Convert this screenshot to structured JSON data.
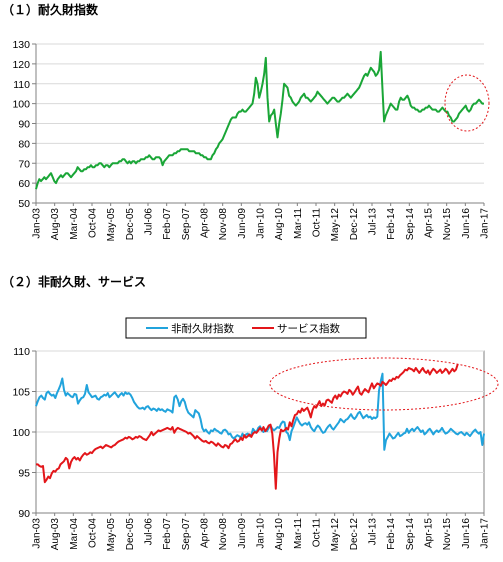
{
  "sections": {
    "durable_title": "（１）耐久財指数",
    "nondurable_title": "（２）非耐久財、サービス"
  },
  "colors": {
    "durable": "#1aa637",
    "nondurable": "#21a3dc",
    "services": "#e3161a",
    "highlight": "#e3161a",
    "axis": "#808080",
    "grid": "#d9d9d9"
  },
  "chart_data": [
    {
      "type": "line",
      "title": "",
      "x_tick_labels": [
        "Jan-03",
        "Aug-03",
        "Mar-04",
        "Oct-04",
        "May-05",
        "Dec-05",
        "Jul-06",
        "Feb-07",
        "Sep-07",
        "Apr-08",
        "Nov-08",
        "Jun-09",
        "Jan-10",
        "Aug-10",
        "Mar-11",
        "Oct-11",
        "May-12",
        "Dec-12",
        "Jul-13",
        "Feb-14",
        "Sep-14",
        "Apr-15",
        "Nov-15",
        "Jun-16",
        "Jan-17"
      ],
      "ylim": [
        50,
        130
      ],
      "y_ticks": [
        50,
        60,
        70,
        80,
        90,
        100,
        110,
        120,
        130
      ],
      "grid": "horizontal",
      "highlight": "dotted ellipse around Jun-16 to Jan-17",
      "series": [
        {
          "color": "durable",
          "values": [
            57,
            60,
            62,
            61,
            62,
            63,
            62,
            63,
            64,
            65,
            63,
            61,
            60,
            62,
            63,
            64,
            63,
            64,
            65,
            65,
            64,
            63,
            64,
            65,
            66,
            68,
            67,
            66,
            66,
            67,
            67,
            68,
            68,
            69,
            68,
            68,
            69,
            69,
            70,
            70,
            69,
            68,
            69,
            69,
            68,
            69,
            70,
            70,
            70,
            70,
            71,
            71,
            72,
            72,
            71,
            70,
            71,
            70,
            71,
            71,
            70,
            71,
            71,
            72,
            72,
            72,
            73,
            73,
            74,
            73,
            72,
            72,
            73,
            73,
            73,
            72,
            69,
            71,
            72,
            73,
            74,
            74,
            74,
            75,
            75,
            76,
            76,
            77,
            77,
            77,
            77,
            77,
            76,
            76,
            76,
            76,
            75,
            75,
            75,
            74,
            74,
            73,
            73,
            72,
            72,
            72,
            74,
            75,
            77,
            78,
            80,
            81,
            82,
            84,
            86,
            88,
            90,
            92,
            93,
            93,
            93,
            95,
            96,
            96,
            97,
            96,
            96,
            97,
            98,
            99,
            100,
            105,
            113,
            110,
            103,
            106,
            110,
            115,
            123,
            103,
            91,
            94,
            95,
            97,
            90,
            83,
            90,
            95,
            102,
            110,
            109,
            108,
            104,
            103,
            101,
            100,
            99,
            100,
            101,
            103,
            104,
            105,
            103,
            103,
            102,
            101,
            102,
            103,
            104,
            106,
            105,
            104,
            103,
            102,
            101,
            100,
            101,
            102,
            103,
            103,
            102,
            101,
            101,
            102,
            103,
            103,
            104,
            105,
            104,
            103,
            104,
            105,
            106,
            107,
            108,
            110,
            112,
            114,
            115,
            114,
            116,
            118,
            117,
            116,
            114,
            115,
            117,
            126,
            108,
            91,
            94,
            96,
            98,
            100,
            99,
            98,
            97,
            97,
            101,
            103,
            102,
            102,
            103,
            104,
            102,
            99,
            98,
            98,
            97,
            97,
            96,
            96,
            97,
            97,
            98,
            98,
            99,
            98,
            97,
            97,
            97,
            96,
            96,
            97,
            98,
            97,
            96,
            96,
            94,
            93,
            91,
            91,
            92,
            93,
            95,
            96,
            97,
            98,
            99,
            97,
            96,
            97,
            99,
            100,
            100,
            101,
            102,
            101,
            100,
            100
          ]
        }
      ]
    },
    {
      "type": "line",
      "title": "",
      "x_tick_labels": [
        "Jan-03",
        "Aug-03",
        "Mar-04",
        "Oct-04",
        "May-05",
        "Dec-05",
        "Jul-06",
        "Feb-07",
        "Sep-07",
        "Apr-08",
        "Nov-08",
        "Jun-09",
        "Jan-10",
        "Aug-10",
        "Mar-11",
        "Oct-11",
        "May-12",
        "Dec-12",
        "Jul-13",
        "Feb-14",
        "Sep-14",
        "Apr-15",
        "Nov-15",
        "Jun-16",
        "Jan-17"
      ],
      "ylim": [
        90,
        110
      ],
      "y_ticks": [
        90,
        95,
        100,
        105,
        110
      ],
      "grid": "horizontal",
      "legend_position": "top-center",
      "highlight": "dotted ellipse from Jan-14 to Jan-17",
      "series": [
        {
          "name": "非耐久財指数",
          "color": "nondurable",
          "values": [
            103.2,
            103.8,
            104.3,
            104.5,
            104.2,
            104.0,
            104.8,
            105.0,
            104.7,
            104.5,
            104.6,
            104.2,
            104.8,
            105.3,
            105.8,
            106.6,
            105.2,
            104.5,
            104.8,
            104.6,
            104.4,
            104.3,
            104.7,
            104.6,
            103.5,
            103.9,
            104.2,
            104.3,
            104.7,
            105.8,
            104.9,
            104.6,
            104.3,
            104.4,
            104.5,
            104.1,
            104.0,
            104.3,
            104.4,
            104.6,
            104.5,
            104.8,
            104.3,
            104.5,
            104.7,
            104.9,
            104.6,
            104.3,
            104.6,
            104.8,
            104.5,
            104.9,
            104.7,
            104.8,
            104.6,
            104.2,
            103.7,
            103.4,
            103.1,
            102.9,
            102.9,
            103.0,
            102.8,
            103.1,
            103.2,
            102.9,
            102.7,
            102.9,
            102.8,
            102.6,
            102.9,
            102.7,
            102.8,
            102.6,
            102.5,
            102.8,
            102.7,
            102.6,
            102.4,
            104.3,
            104.5,
            104.0,
            103.2,
            103.8,
            104.1,
            103.7,
            102.9,
            102.4,
            102.2,
            102.0,
            101.8,
            102.7,
            102.5,
            102.3,
            101.6,
            100.5,
            100.1,
            100.3,
            100.0,
            99.8,
            100.2,
            100.1,
            100.4,
            100.2,
            100.1,
            99.9,
            99.8,
            100.2,
            100.3,
            100.1,
            99.7,
            99.8,
            99.4,
            99.2,
            99.4,
            99.6,
            99.5,
            99.3,
            99.8,
            99.4,
            99.7,
            99.8,
            99.5,
            99.6,
            100.4,
            100.1,
            100.0,
            100.5,
            100.7,
            100.2,
            100.0,
            100.3,
            100.1,
            100.5,
            100.8,
            100.4,
            100.2,
            100.4,
            100.6,
            100.5,
            101.0,
            101.3,
            101.2,
            100.0,
            99.8,
            99.0,
            100.1,
            100.6,
            101.2,
            101.8,
            101.4,
            101.0,
            100.8,
            101.0,
            101.1,
            100.9,
            101.2,
            100.6,
            100.3,
            100.1,
            100.5,
            100.8,
            100.6,
            100.2,
            99.9,
            100.0,
            100.4,
            100.7,
            100.9,
            100.5,
            100.3,
            100.6,
            100.9,
            101.2,
            101.6,
            101.4,
            101.2,
            101.5,
            101.6,
            101.9,
            102.2,
            101.8,
            101.6,
            101.9,
            102.3,
            102.5,
            102.1,
            101.7,
            101.9,
            102.1,
            101.8,
            101.9,
            101.6,
            101.8,
            101.7,
            101.9,
            105.1,
            106.3,
            107.2,
            97.8,
            99.0,
            99.4,
            99.8,
            99.5,
            99.2,
            99.3,
            99.6,
            99.9,
            99.5,
            99.6,
            99.8,
            99.9,
            100.4,
            99.9,
            100.2,
            100.4,
            100.1,
            100.4,
            100.6,
            100.3,
            100.0,
            100.2,
            99.7,
            99.9,
            100.2,
            100.4,
            100.1,
            99.7,
            100.0,
            100.2,
            100.0,
            100.2,
            100.5,
            100.1,
            99.8,
            99.9,
            100.1,
            100.4,
            100.2,
            100.0,
            99.8,
            99.7,
            99.9,
            100.0,
            99.8,
            99.6,
            99.9,
            99.7,
            99.5,
            99.8,
            100.1,
            100.3,
            100.0,
            99.8,
            100.0,
            98.4,
            99.8
          ]
        },
        {
          "name": "サービス指数",
          "color": "services",
          "values": [
            96.0,
            96.0,
            95.8,
            95.7,
            95.8,
            93.8,
            94.1,
            94.5,
            94.3,
            94.9,
            95.2,
            95.1,
            95.4,
            95.5,
            96.0,
            96.2,
            96.4,
            96.8,
            96.6,
            95.5,
            96.3,
            96.7,
            96.9,
            96.6,
            96.8,
            96.5,
            96.9,
            97.2,
            97.4,
            97.2,
            97.3,
            97.5,
            97.4,
            97.7,
            97.9,
            98.0,
            98.1,
            98.2,
            98.0,
            98.2,
            98.4,
            98.3,
            98.2,
            98.1,
            98.3,
            98.4,
            98.6,
            98.8,
            98.9,
            99.0,
            99.1,
            99.3,
            99.2,
            99.4,
            99.3,
            99.1,
            99.2,
            99.4,
            99.3,
            99.5,
            99.4,
            99.2,
            99.1,
            99.0,
            99.3,
            99.6,
            100.0,
            99.6,
            99.8,
            100.0,
            100.2,
            100.1,
            100.2,
            100.3,
            100.4,
            100.5,
            100.4,
            100.3,
            100.6,
            99.9,
            100.3,
            100.5,
            100.4,
            100.3,
            100.2,
            100.1,
            100.0,
            99.8,
            99.9,
            99.7,
            99.5,
            99.2,
            99.5,
            99.3,
            99.1,
            98.9,
            98.8,
            98.9,
            98.7,
            98.6,
            98.8,
            98.7,
            98.5,
            98.3,
            98.6,
            98.4,
            98.2,
            98.1,
            98.4,
            98.3,
            98.0,
            98.5,
            98.6,
            98.9,
            99.1,
            98.8,
            98.9,
            99.3,
            99.0,
            99.6,
            99.3,
            99.5,
            99.7,
            99.4,
            99.8,
            100.0,
            99.9,
            100.2,
            100.5,
            100.2,
            100.6,
            100.1,
            100.4,
            100.8,
            100.9,
            99.8,
            97.2,
            93.0,
            97.5,
            99.2,
            100.3,
            100.1,
            100.2,
            100.5,
            100.3,
            101.2,
            100.7,
            101.5,
            102.1,
            102.2,
            102.6,
            102.4,
            102.9,
            102.6,
            102.8,
            103.0,
            102.5,
            101.8,
            102.7,
            103.2,
            103.0,
            103.4,
            103.8,
            103.2,
            103.5,
            103.3,
            103.9,
            104.0,
            103.8,
            103.6,
            104.2,
            104.5,
            104.1,
            104.6,
            104.4,
            104.8,
            105.0,
            104.9,
            104.7,
            105.2,
            105.0,
            104.6,
            104.9,
            105.3,
            105.6,
            104.8,
            104.6,
            105.0,
            105.3,
            105.1,
            104.9,
            105.5,
            106.0,
            105.4,
            105.7,
            106.0,
            105.9,
            105.7,
            106.2,
            106.0,
            105.8,
            106.1,
            106.4,
            106.3,
            106.6,
            106.5,
            106.8,
            106.7,
            107.0,
            107.2,
            107.4,
            107.7,
            107.6,
            107.9,
            107.8,
            107.7,
            107.5,
            107.9,
            107.6,
            107.3,
            107.6,
            107.9,
            107.5,
            107.3,
            107.6,
            107.1,
            107.5,
            107.8,
            107.6,
            107.3,
            107.5,
            107.7,
            107.3,
            107.5,
            107.8,
            107.6,
            107.2,
            107.5,
            107.8,
            107.5,
            107.7,
            108.4
          ]
        }
      ]
    }
  ]
}
